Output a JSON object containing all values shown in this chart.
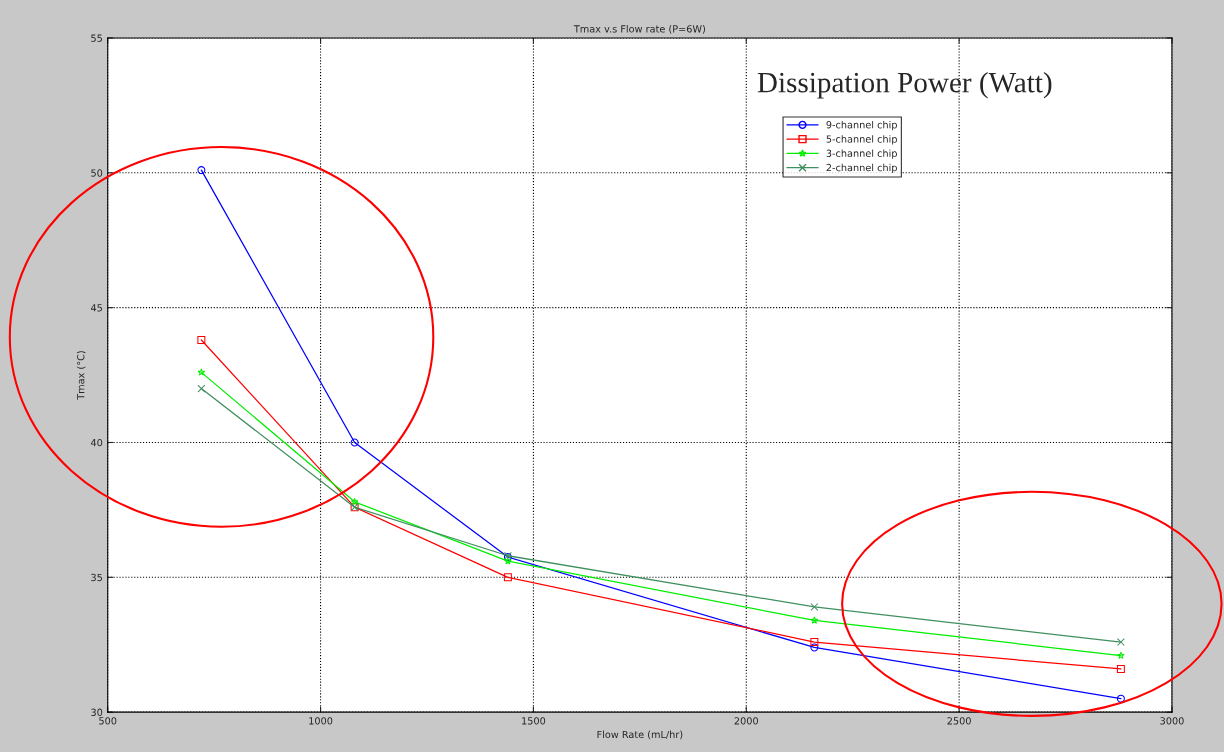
{
  "chart_data": {
    "type": "line",
    "title": "Tmax v.s Flow rate (P=6W)",
    "xlabel": "Flow Rate (mL/hr)",
    "ylabel": "Tmax (°C)",
    "x": [
      720,
      1080,
      1440,
      2160,
      2880
    ],
    "series": [
      {
        "name": "9-channel chip",
        "color": "#0000ff",
        "marker": "circle",
        "values": [
          50.1,
          40.0,
          35.75,
          32.4,
          30.5
        ]
      },
      {
        "name": "5-channel chip",
        "color": "#ff0000",
        "marker": "square",
        "values": [
          43.8,
          37.6,
          35.0,
          32.6,
          31.6
        ]
      },
      {
        "name": "3-channel chip",
        "color": "#00ee00",
        "marker": "star",
        "values": [
          42.6,
          37.8,
          35.6,
          33.4,
          32.1
        ]
      },
      {
        "name": "2-channel chip",
        "color": "#3f8f5f",
        "marker": "cross",
        "values": [
          42.0,
          37.6,
          35.8,
          33.9,
          32.6
        ]
      }
    ],
    "xlim": [
      500,
      3000
    ],
    "xticks": [
      500,
      1000,
      1500,
      2000,
      2500,
      3000
    ],
    "ylim": [
      30,
      55
    ],
    "yticks": [
      30,
      35,
      40,
      45,
      50,
      55
    ],
    "grid": true,
    "legend": "top right",
    "line_style": "solid",
    "annotations": [
      "Dissipation Power (Watt)"
    ]
  }
}
